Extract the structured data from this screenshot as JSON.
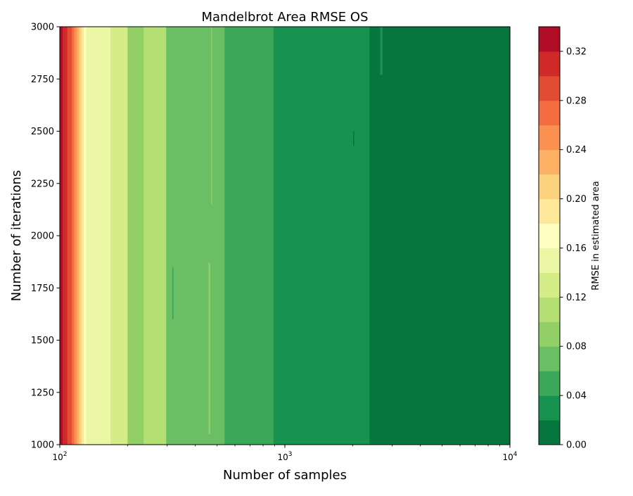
{
  "chart_data": {
    "type": "heatmap",
    "subtype": "filled-contour",
    "title": "Mandelbrot Area RMSE OS",
    "xlabel": "Number of samples",
    "ylabel": "Number of iterations",
    "xscale": "log",
    "xlim": [
      100,
      10000
    ],
    "ylim": [
      1000,
      3000
    ],
    "xticks": [
      {
        "value": 100,
        "base": "10",
        "exp": "2"
      },
      {
        "value": 1000,
        "base": "10",
        "exp": "3"
      },
      {
        "value": 10000,
        "base": "10",
        "exp": "4"
      }
    ],
    "yticks": [
      "1000",
      "1250",
      "1500",
      "1750",
      "2000",
      "2250",
      "2500",
      "2750",
      "3000"
    ],
    "colorbar": {
      "label": "RMSE in estimated area",
      "levels": [
        0.0,
        0.02,
        0.04,
        0.06,
        0.08,
        0.1,
        0.12,
        0.14,
        0.16,
        0.18,
        0.2,
        0.22,
        0.24,
        0.26,
        0.28,
        0.3,
        0.32,
        0.34
      ],
      "colors": [
        "#07753e",
        "#17924f",
        "#3ca85a",
        "#6abf64",
        "#92d067",
        "#b4df72",
        "#d5ed86",
        "#ebf7a4",
        "#fefec0",
        "#fee99a",
        "#fdd27e",
        "#fdb164",
        "#fb9151",
        "#f46c42",
        "#e24c35",
        "#cf2a27",
        "#b10c26"
      ],
      "ticks": [
        "0.00",
        "0.04",
        "0.08",
        "0.12",
        "0.16",
        "0.20",
        "0.24",
        "0.28",
        "0.32"
      ]
    },
    "bands": [
      {
        "x_start": 100,
        "x_end": 103,
        "level": 16
      },
      {
        "x_start": 103,
        "x_end": 108,
        "level": 15
      },
      {
        "x_start": 108,
        "x_end": 113,
        "level": 14
      },
      {
        "x_start": 113,
        "x_end": 116,
        "level": 13
      },
      {
        "x_start": 116,
        "x_end": 119,
        "level": 12
      },
      {
        "x_start": 119,
        "x_end": 122,
        "level": 11
      },
      {
        "x_start": 122,
        "x_end": 125,
        "level": 10
      },
      {
        "x_start": 125,
        "x_end": 128,
        "level": 9
      },
      {
        "x_start": 128,
        "x_end": 131,
        "level": 8
      },
      {
        "x_start": 131,
        "x_end": 134,
        "level": 7
      },
      {
        "x_start": 134,
        "x_end": 168,
        "level": 7
      },
      {
        "x_start": 168,
        "x_end": 200,
        "level": 6
      },
      {
        "x_start": 200,
        "x_end": 236,
        "level": 4
      },
      {
        "x_start": 236,
        "x_end": 297,
        "level": 5
      },
      {
        "x_start": 297,
        "x_end": 540,
        "level": 3
      },
      {
        "x_start": 540,
        "x_end": 890,
        "level": 2
      },
      {
        "x_start": 890,
        "x_end": 2380,
        "level": 1
      },
      {
        "x_start": 2380,
        "x_end": 10000,
        "level": 0
      }
    ],
    "patches": [
      {
        "x_start": 458,
        "x_end": 466,
        "y_start": 1050,
        "y_end": 1870,
        "level": 4
      },
      {
        "x_start": 470,
        "x_end": 474,
        "y_start": 2150,
        "y_end": 3000,
        "level": 4
      },
      {
        "x_start": 316,
        "x_end": 320,
        "y_start": 1600,
        "y_end": 1850,
        "level": 2
      },
      {
        "x_start": 2650,
        "x_end": 2720,
        "y_start": 2770,
        "y_end": 3000,
        "level": 1
      },
      {
        "x_start": 2010,
        "x_end": 2030,
        "y_start": 2430,
        "y_end": 2500,
        "level": 0
      }
    ]
  }
}
